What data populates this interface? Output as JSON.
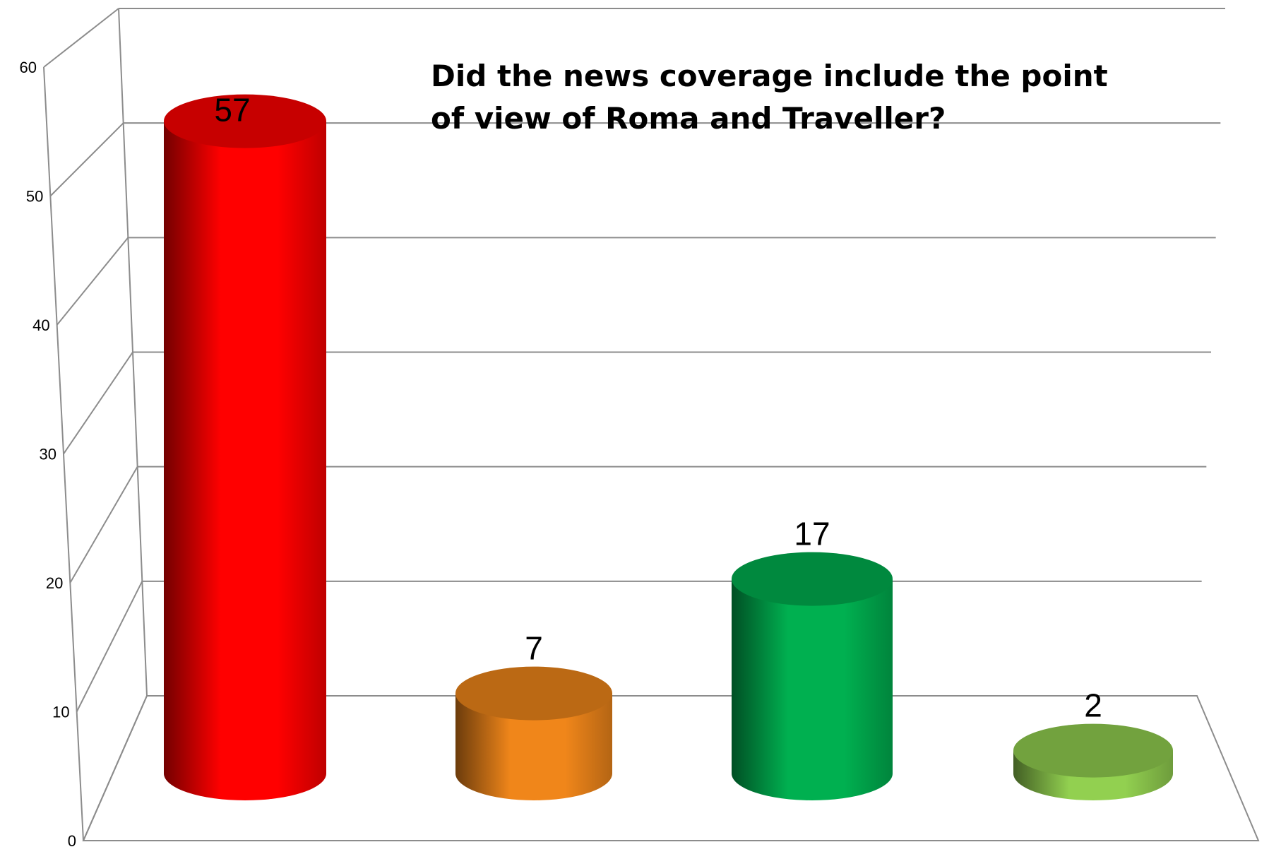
{
  "chart_data": {
    "type": "bar",
    "style": "3d-cylinder",
    "title": "Did the news coverage include the point of view of Roma and Traveller?",
    "xlabel": "",
    "ylabel": "",
    "ylim": [
      0,
      60
    ],
    "yticks": [
      "0",
      "10",
      "20",
      "30",
      "40",
      "50",
      "60"
    ],
    "grid": true,
    "legend": "none",
    "categories": [
      "",
      "",
      "",
      ""
    ],
    "values": [
      57,
      7,
      17,
      2
    ],
    "data_labels": [
      "57",
      "7",
      "17",
      "2"
    ],
    "colors": [
      "#ff0000",
      "#f0861a",
      "#00b050",
      "#92d050"
    ]
  }
}
